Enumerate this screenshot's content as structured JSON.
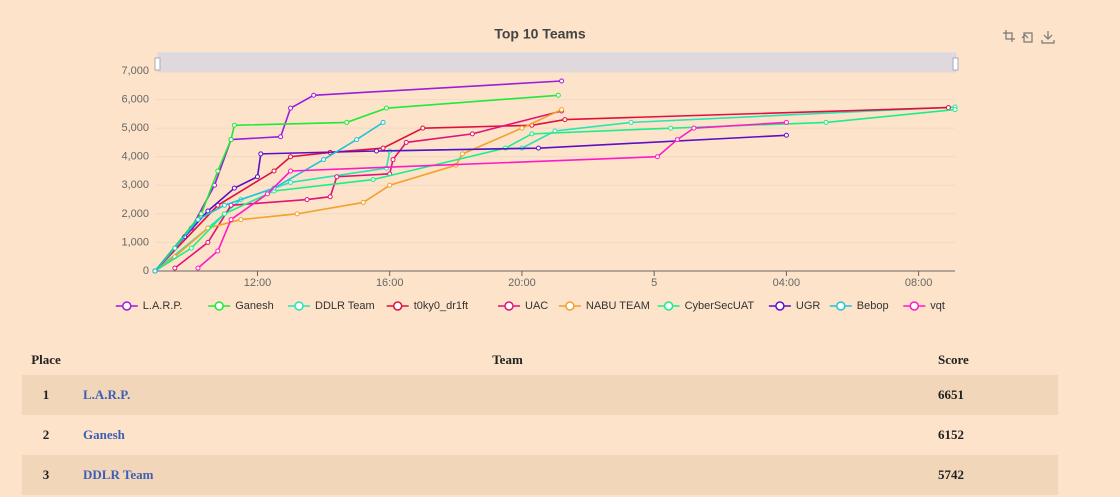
{
  "chart_data": {
    "type": "line",
    "title": "Top 10 Teams",
    "xlim": [
      8.9,
      33.1
    ],
    "xticks": [
      {
        "value": 12,
        "label": "12:00"
      },
      {
        "value": 16,
        "label": "16:00"
      },
      {
        "value": 20,
        "label": "20:00"
      },
      {
        "value": 24,
        "label": "5"
      },
      {
        "value": 28,
        "label": "04:00"
      },
      {
        "value": 32,
        "label": "08:00"
      }
    ],
    "ylim": [
      0,
      7000
    ],
    "yticks": [
      0,
      {
        "value": 1000,
        "label": "1,000"
      },
      {
        "value": 2000,
        "label": "2,000"
      },
      {
        "value": 3000,
        "label": "3,000"
      },
      {
        "value": 4000,
        "label": "4,000"
      },
      {
        "value": 5000,
        "label": "5,000"
      },
      {
        "value": 6000,
        "label": "6,000"
      },
      {
        "value": 7000,
        "label": "7,000"
      }
    ],
    "grid": true,
    "legend": "bottom",
    "series": [
      {
        "name": "L.A.R.P.",
        "color": "#9b1de0",
        "x": [
          8.9,
          10,
          10.7,
          11.2,
          12.7,
          13,
          13.7,
          21.2
        ],
        "values": [
          0,
          1500,
          3000,
          4600,
          4700,
          5700,
          6150,
          6650
        ]
      },
      {
        "name": "Ganesh",
        "color": "#22e83a",
        "x": [
          8.9,
          10.3,
          10.8,
          11.2,
          11.3,
          14.7,
          15.9,
          21.1
        ],
        "values": [
          0,
          2000,
          3500,
          4600,
          5100,
          5200,
          5700,
          6150
        ]
      },
      {
        "name": "DDLR Team",
        "color": "#27e5b5",
        "x": [
          8.9,
          10.5,
          11.5,
          13,
          15.9,
          16,
          20,
          21,
          23.3,
          33.1
        ],
        "values": [
          0,
          1500,
          2500,
          3100,
          3600,
          4200,
          4300,
          4900,
          5200,
          5740
        ]
      },
      {
        "name": "t0ky0_dr1ft",
        "color": "#e0103c",
        "x": [
          8.9,
          10.8,
          12.5,
          13,
          14.2,
          15.8,
          17,
          20.3,
          21.3,
          32.9
        ],
        "values": [
          0,
          2300,
          3500,
          4000,
          4150,
          4300,
          5000,
          5100,
          5300,
          5720
        ]
      },
      {
        "name": "UAC",
        "color": "#e0137a",
        "x": [
          9.5,
          10.5,
          11.2,
          13.5,
          14.2,
          14.4,
          16,
          16.1,
          16.5,
          18.5,
          21.2
        ],
        "values": [
          100,
          1000,
          2300,
          2500,
          2600,
          3300,
          3400,
          3900,
          4500,
          4800,
          5600
        ]
      },
      {
        "name": "NABU TEAM",
        "color": "#f2a12a",
        "x": [
          8.9,
          9.5,
          10.5,
          11.5,
          13.2,
          15.2,
          16,
          18,
          18.2,
          20,
          21.2
        ],
        "values": [
          0,
          500,
          1500,
          1800,
          2000,
          2400,
          3000,
          3700,
          4100,
          5000,
          5650
        ]
      },
      {
        "name": "CyberSecUAT",
        "color": "#1aee8c",
        "x": [
          8.9,
          10,
          11,
          12.5,
          15.5,
          19.5,
          20.3,
          24.5,
          29.2,
          33.1
        ],
        "values": [
          0,
          800,
          2000,
          2800,
          3200,
          4300,
          4800,
          5000,
          5200,
          5650
        ]
      },
      {
        "name": "UGR",
        "color": "#5a10c8",
        "x": [
          8.9,
          9.8,
          10.5,
          11.3,
          12,
          12.1,
          15.6,
          20.5,
          28
        ],
        "values": [
          0,
          1200,
          2100,
          2900,
          3300,
          4100,
          4200,
          4300,
          4750
        ]
      },
      {
        "name": "Bebop",
        "color": "#20c4d8",
        "x": [
          8.9,
          9.5,
          10.2,
          11,
          12.5,
          14,
          15,
          15.8
        ],
        "values": [
          0,
          800,
          1800,
          2300,
          2900,
          3900,
          4600,
          5200
        ]
      },
      {
        "name": "vqt",
        "color": "#ff19c8",
        "x": [
          10.2,
          10.8,
          11.2,
          12.3,
          13,
          24.1,
          24.7,
          25.2,
          28
        ],
        "values": [
          100,
          700,
          1800,
          2700,
          3500,
          4000,
          4600,
          5000,
          5200
        ]
      }
    ]
  },
  "table": {
    "columns": [
      "Place",
      "Team",
      "Score"
    ],
    "rows": [
      [
        "1",
        "L.A.R.P.",
        "6651"
      ],
      [
        "2",
        "Ganesh",
        "6152"
      ],
      [
        "3",
        "DDLR Team",
        "5742"
      ]
    ]
  }
}
